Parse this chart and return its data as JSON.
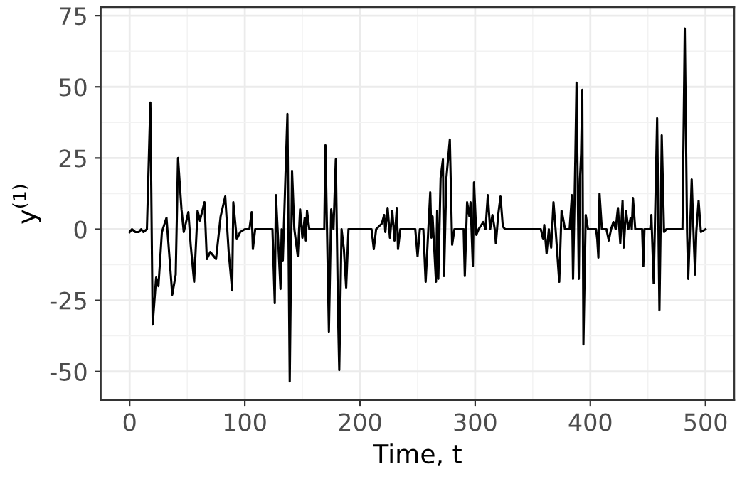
{
  "chart_data": {
    "type": "line",
    "xlabel": "Time, t",
    "ylabel": "y$^{(1)}$",
    "x": [
      0,
      2,
      5,
      8,
      10,
      12,
      15,
      18,
      20,
      23,
      25,
      28,
      32,
      37,
      40,
      42,
      45,
      47,
      51,
      53,
      56,
      59,
      61,
      65,
      67,
      70,
      75,
      79,
      83,
      86,
      89,
      90,
      93,
      96,
      100,
      104,
      106,
      107,
      109,
      115,
      120,
      124,
      126,
      127,
      131,
      132,
      133,
      137,
      139,
      141,
      143,
      146,
      148,
      150,
      152,
      153,
      154,
      156,
      165,
      169,
      170,
      173,
      175,
      177,
      179,
      181,
      182,
      184,
      186,
      188,
      190,
      200,
      210,
      212,
      214,
      219,
      221,
      222,
      224,
      226,
      228,
      230,
      232,
      233,
      235,
      248,
      250,
      252,
      255,
      257,
      261,
      262,
      263,
      266,
      267,
      268,
      270,
      272,
      273,
      275,
      278,
      280,
      282,
      290,
      291,
      293,
      295,
      296,
      298,
      299,
      301,
      303,
      307,
      309,
      311,
      313,
      315,
      317,
      318,
      320,
      322,
      324,
      326,
      340,
      357,
      359,
      360,
      362,
      364,
      366,
      368,
      370,
      373,
      375,
      376,
      378,
      382,
      384,
      385,
      387,
      388,
      390,
      391,
      392,
      393,
      394,
      396,
      398,
      405,
      406,
      407,
      408,
      410,
      414,
      416,
      418,
      420,
      422,
      424,
      426,
      428,
      429,
      431,
      433,
      435,
      436,
      437,
      439,
      445,
      446,
      447,
      452,
      453,
      455,
      456,
      458,
      460,
      461,
      462,
      464,
      466,
      477,
      480,
      482,
      484,
      485,
      487,
      488,
      490,
      491,
      492,
      494,
      496,
      500
    ],
    "values": [
      -1,
      0,
      -1,
      -1,
      0,
      -1,
      0,
      44.5,
      -33.5,
      -17,
      -20,
      -1,
      4,
      -23,
      -16,
      25,
      7,
      -1,
      6,
      -5.5,
      -18.5,
      6.5,
      3,
      9.5,
      -10.5,
      -8,
      -10.5,
      4.5,
      11.5,
      -8,
      -21.5,
      9.5,
      -3.5,
      -1,
      0,
      0,
      6,
      -7,
      0,
      0,
      0,
      0,
      -26,
      12,
      -21,
      0,
      -11,
      40.5,
      -53.5,
      20.5,
      0,
      -9.5,
      7,
      -3,
      4,
      -4,
      6.5,
      0,
      0,
      0,
      29.5,
      -36,
      7,
      0,
      24.5,
      -31,
      -49.5,
      0,
      -7,
      -20.5,
      0,
      0,
      0,
      -7,
      0,
      2,
      5,
      -1,
      7.5,
      -3,
      6.5,
      -4,
      7.5,
      -7,
      0,
      0,
      -9.5,
      0,
      0,
      -18.5,
      13,
      -3,
      4.5,
      -18.5,
      6.5,
      -17.5,
      18,
      24.5,
      -16.5,
      18,
      31.5,
      -5.5,
      0,
      0,
      -16.5,
      9.5,
      4.5,
      9.5,
      -13,
      16.5,
      -2,
      0,
      2.5,
      0,
      12,
      0,
      5,
      0,
      -5,
      5,
      11.5,
      1,
      0,
      0,
      0,
      -3.5,
      1.5,
      -8.5,
      0,
      -6.5,
      9.5,
      -1,
      -18.5,
      6.5,
      4.5,
      0,
      0,
      12,
      -17.5,
      25.5,
      51.5,
      -17.5,
      17.5,
      26.5,
      49,
      -40.5,
      5,
      0,
      0,
      -3.5,
      -10,
      12.5,
      0,
      0,
      -4,
      0,
      2.5,
      0,
      7.5,
      -5,
      10,
      -6.5,
      6.5,
      0,
      4,
      0,
      11,
      0,
      0,
      -13,
      0,
      0,
      5,
      -19,
      0,
      39,
      -28.5,
      0,
      33,
      -1,
      0,
      0,
      0,
      70.5,
      -1,
      -17.5,
      5,
      17.5,
      -6,
      -16,
      -1,
      10,
      -1,
      0
    ],
    "color": "#000000",
    "xlim": [
      -25,
      525
    ],
    "ylim": [
      -60,
      78
    ],
    "xticks": [
      0,
      100,
      200,
      300,
      400,
      500
    ],
    "yticks": [
      -50,
      -25,
      0,
      25,
      50,
      75
    ],
    "grid": true,
    "marker": "none",
    "line_style": "solid"
  }
}
